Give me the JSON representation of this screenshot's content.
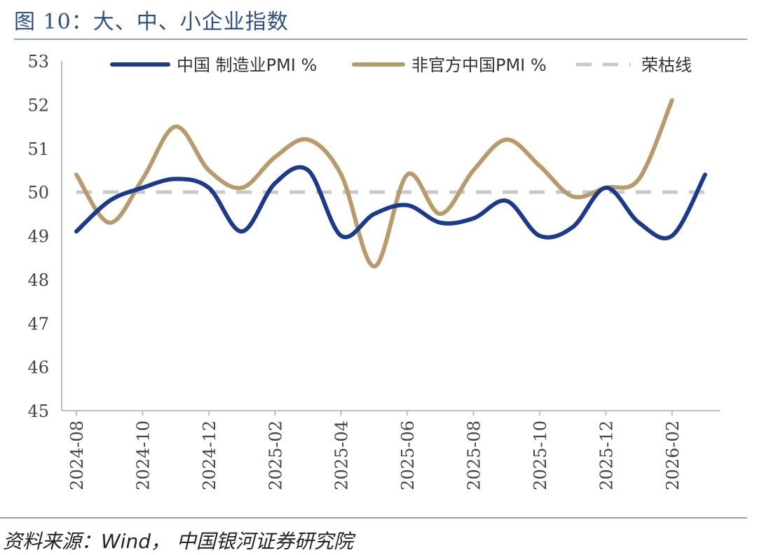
{
  "title": "图 10：大、中、小企业指数",
  "source": "资料来源：Wind， 中国银河证券研究院",
  "chart_data": {
    "type": "line",
    "ylim": [
      45,
      53
    ],
    "yticks": [
      45,
      46,
      47,
      48,
      49,
      50,
      51,
      52,
      53
    ],
    "x": [
      "2024-08",
      "2024-09",
      "2024-10",
      "2024-11",
      "2024-12",
      "2025-01",
      "2025-02",
      "2025-03",
      "2025-04",
      "2025-05",
      "2025-06",
      "2025-07",
      "2025-08",
      "2025-09",
      "2025-10",
      "2025-11",
      "2025-12",
      "2026-01",
      "2026-02",
      "2026-03"
    ],
    "xtick_labels": [
      "2024-08",
      "2024-10",
      "2024-12",
      "2025-02",
      "2025-04",
      "2025-06",
      "2025-08",
      "2025-10",
      "2025-12",
      "2026-02"
    ],
    "series": [
      {
        "name": "中国 制造业PMI %",
        "color": "#1B3A8C",
        "dash": false,
        "values": [
          49.1,
          49.8,
          50.1,
          50.3,
          50.1,
          49.1,
          50.2,
          50.5,
          49.0,
          49.5,
          49.7,
          49.3,
          49.4,
          49.8,
          49.0,
          49.2,
          50.1,
          49.3,
          49.0,
          50.4
        ]
      },
      {
        "name": "非官方中国PMI %",
        "color": "#B99A6B",
        "dash": false,
        "values": [
          50.4,
          49.3,
          50.3,
          51.5,
          50.5,
          50.1,
          50.8,
          51.2,
          50.4,
          48.3,
          50.4,
          49.5,
          50.5,
          51.2,
          50.6,
          49.9,
          50.1,
          50.3,
          52.1,
          null
        ]
      },
      {
        "name": "荣枯线",
        "color": "#C8C8C8",
        "dash": true,
        "values": [
          50,
          50,
          50,
          50,
          50,
          50,
          50,
          50,
          50,
          50,
          50,
          50,
          50,
          50,
          50,
          50,
          50,
          50,
          50,
          50
        ]
      }
    ]
  }
}
